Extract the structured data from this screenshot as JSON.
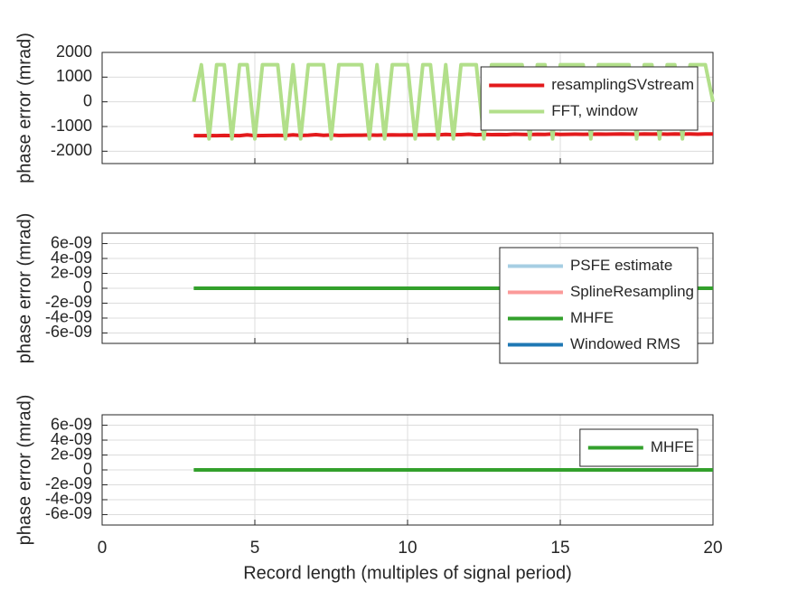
{
  "chart_data": [
    {
      "type": "line",
      "ylabel": "phase error (mrad)",
      "x": [
        3,
        3.25,
        3.5,
        3.75,
        4,
        4.25,
        4.5,
        4.75,
        5,
        5.25,
        5.5,
        5.75,
        6,
        6.25,
        6.5,
        6.75,
        7,
        7.25,
        7.5,
        7.75,
        8,
        8.25,
        8.5,
        8.75,
        9,
        9.25,
        9.5,
        9.75,
        10,
        10.25,
        10.5,
        10.75,
        11,
        11.25,
        11.5,
        11.75,
        12,
        12.25,
        12.5,
        12.75,
        13,
        13.25,
        13.5,
        13.75,
        14,
        14.25,
        14.5,
        14.75,
        15,
        15.25,
        15.5,
        15.75,
        16,
        16.25,
        16.5,
        16.75,
        17,
        17.25,
        17.5,
        17.75,
        18,
        18.25,
        18.5,
        18.75,
        19,
        19.25,
        19.5,
        19.75,
        20
      ],
      "series": [
        {
          "name": "resamplingSVstream",
          "color": "#e31a1c",
          "values": [
            -1370,
            -1370,
            -1365,
            -1370,
            -1360,
            -1365,
            -1370,
            -1340,
            -1370,
            -1365,
            -1360,
            -1355,
            -1365,
            -1340,
            -1360,
            -1350,
            -1330,
            -1355,
            -1345,
            -1360,
            -1355,
            -1350,
            -1350,
            -1345,
            -1350,
            -1345,
            -1340,
            -1345,
            -1340,
            -1345,
            -1340,
            -1335,
            -1340,
            -1320,
            -1335,
            -1330,
            -1310,
            -1335,
            -1320,
            -1330,
            -1325,
            -1330,
            -1310,
            -1320,
            -1325,
            -1315,
            -1320,
            -1300,
            -1320,
            -1315,
            -1310,
            -1315,
            -1310,
            -1305,
            -1310,
            -1305,
            -1300,
            -1305,
            -1310,
            -1300,
            -1305,
            -1300,
            -1310,
            -1300,
            -1305,
            -1300,
            -1310,
            -1300,
            -1300
          ]
        },
        {
          "name": "FFT, window",
          "color": "#b2df8a",
          "values": [
            0,
            1500,
            -1500,
            1500,
            1500,
            -1500,
            1500,
            1500,
            -1500,
            1500,
            1500,
            1500,
            -1500,
            1500,
            -1500,
            1500,
            1500,
            1500,
            -1500,
            1500,
            1500,
            1500,
            1500,
            -1500,
            1500,
            -1500,
            1500,
            1500,
            1500,
            -1500,
            1500,
            1500,
            -1500,
            1500,
            -1500,
            1500,
            1500,
            1500,
            -1500,
            1500,
            1500,
            1500,
            1500,
            1500,
            -1500,
            1500,
            1500,
            -1500,
            1500,
            1500,
            1500,
            1500,
            -1500,
            1500,
            1500,
            1500,
            1500,
            1500,
            -1500,
            1500,
            1500,
            -1500,
            1500,
            1500,
            -1500,
            1500,
            1500,
            1500,
            0
          ]
        }
      ],
      "xlim": [
        0,
        20
      ],
      "xticks": [
        0,
        5,
        10,
        15,
        20
      ],
      "xtick_labels": false,
      "ylim": [
        -2500,
        2000
      ],
      "yticks": [
        -2000,
        -1000,
        0,
        1000,
        2000
      ],
      "grid": true,
      "legend": "northeast"
    },
    {
      "type": "line",
      "ylabel": "phase error (mrad)",
      "x": [
        3,
        20
      ],
      "series": [
        {
          "name": "PSFE estimate",
          "color": "#a6cee3",
          "values": [
            null,
            null
          ]
        },
        {
          "name": "SplineResampling",
          "color": "#fb9a99",
          "values": [
            null,
            null
          ]
        },
        {
          "name": "MHFE",
          "color": "#33a02c",
          "values": [
            0,
            0
          ]
        },
        {
          "name": "Windowed RMS",
          "color": "#1f78b4",
          "values": [
            null,
            null
          ]
        }
      ],
      "xlim": [
        0,
        20
      ],
      "xticks": [
        0,
        5,
        10,
        15,
        20
      ],
      "xtick_labels": false,
      "ylim": [
        -7.4e-09,
        7.4e-09
      ],
      "yticks": [
        {
          "value": -6e-09,
          "label": "-6e-09"
        },
        {
          "value": -4e-09,
          "label": "-4e-09"
        },
        {
          "value": -2e-09,
          "label": "-2e-09"
        },
        0,
        {
          "value": 2e-09,
          "label": "2e-09"
        },
        {
          "value": 4e-09,
          "label": "4e-09"
        },
        {
          "value": 6e-09,
          "label": "6e-09"
        }
      ],
      "grid": true,
      "legend": "northeast"
    },
    {
      "type": "line",
      "ylabel": "phase error (mrad)",
      "xlabel": "Record length (multiples of signal period)",
      "x": [
        3,
        20
      ],
      "series": [
        {
          "name": "MHFE",
          "color": "#33a02c",
          "values": [
            0,
            0
          ]
        }
      ],
      "xlim": [
        0,
        20
      ],
      "xticks": [
        0,
        5,
        10,
        15,
        20
      ],
      "xtick_labels": true,
      "ylim": [
        -7.4e-09,
        7.4e-09
      ],
      "yticks": [
        {
          "value": -6e-09,
          "label": "-6e-09"
        },
        {
          "value": -4e-09,
          "label": "-4e-09"
        },
        {
          "value": -2e-09,
          "label": "-2e-09"
        },
        0,
        {
          "value": 2e-09,
          "label": "2e-09"
        },
        {
          "value": 4e-09,
          "label": "4e-09"
        },
        {
          "value": 6e-09,
          "label": "6e-09"
        }
      ],
      "grid": true,
      "legend": "northeast"
    }
  ]
}
